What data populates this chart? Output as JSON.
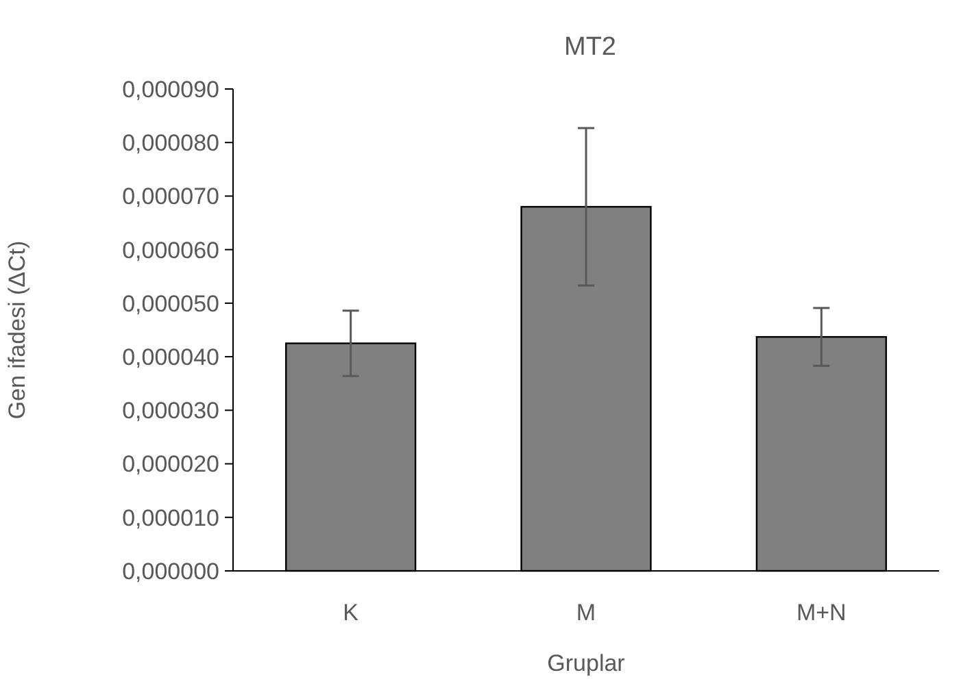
{
  "chart_data": {
    "type": "bar",
    "title": "MT2",
    "xlabel": "Gruplar",
    "ylabel": "Gen ifadesi (ΔCt)",
    "categories": [
      "K",
      "M",
      "M+N"
    ],
    "values": [
      4.25e-05,
      6.8e-05,
      4.37e-05
    ],
    "errors": [
      6.1e-06,
      1.47e-05,
      5.4e-06
    ],
    "color": "#808080",
    "ylim": [
      0,
      9e-05
    ],
    "yticks": [
      {
        "value": 0,
        "label": "0,000000"
      },
      {
        "value": 1e-05,
        "label": "0,000010"
      },
      {
        "value": 2e-05,
        "label": "0,000020"
      },
      {
        "value": 3e-05,
        "label": "0,000030"
      },
      {
        "value": 4e-05,
        "label": "0,000040"
      },
      {
        "value": 5e-05,
        "label": "0,000050"
      },
      {
        "value": 6e-05,
        "label": "0,000060"
      },
      {
        "value": 7e-05,
        "label": "0,000070"
      },
      {
        "value": 8e-05,
        "label": "0,000080"
      },
      {
        "value": 9e-05,
        "label": "0,000090"
      }
    ],
    "grid": false
  }
}
